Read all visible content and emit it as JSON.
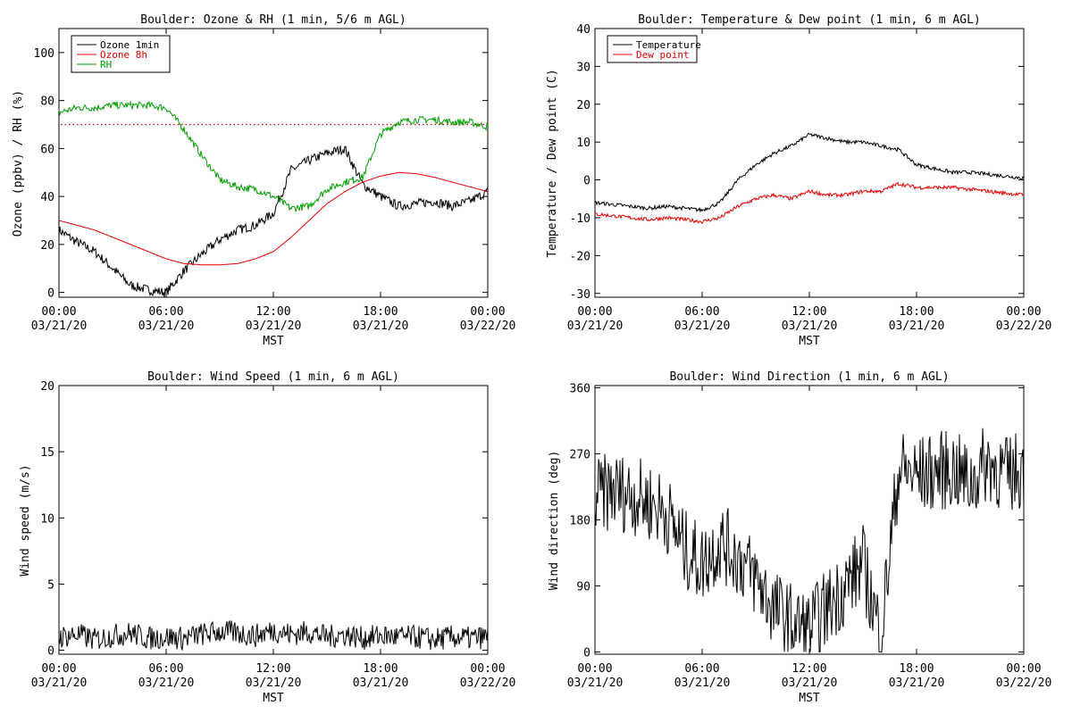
{
  "chart_data": [
    {
      "type": "line",
      "title": "Boulder: Ozone & RH (1 min, 5/6 m AGL)",
      "xlabel": "MST",
      "ylabel": "Ozone (ppbv) / RH (%)",
      "xlim": [
        "03/21/20 00:00",
        "03/22/20 00:00"
      ],
      "ylim": [
        -2,
        110
      ],
      "xticks": [
        {
          "time": "00:00",
          "date": "03/21/20"
        },
        {
          "time": "06:00",
          "date": "03/21/20"
        },
        {
          "time": "12:00",
          "date": "03/21/20"
        },
        {
          "time": "18:00",
          "date": "03/21/20"
        },
        {
          "time": "00:00",
          "date": "03/22/20"
        }
      ],
      "yticks": [
        0,
        20,
        40,
        60,
        80,
        100
      ],
      "legend_placement": "top-left",
      "reference_line": {
        "y": 70,
        "style": "dotted",
        "color": "#e60000"
      },
      "x_hours": [
        0,
        1,
        2,
        3,
        4,
        5,
        6,
        7,
        8,
        9,
        10,
        11,
        12,
        13,
        14,
        15,
        16,
        17,
        18,
        19,
        20,
        21,
        22,
        23,
        24
      ],
      "series": [
        {
          "name": "Ozone 1min",
          "color": "#000000",
          "values": [
            26,
            21,
            17,
            10,
            3,
            1,
            0,
            9,
            16,
            22,
            26,
            28,
            33,
            51,
            55,
            58,
            60,
            45,
            40,
            36,
            37,
            38,
            36,
            38,
            42
          ]
        },
        {
          "name": "Ozone 8h",
          "color": "#e60000",
          "values": [
            30,
            28,
            26,
            23,
            20,
            17,
            14,
            12,
            11.5,
            11.5,
            12,
            14,
            17,
            23,
            30,
            37,
            42,
            46,
            48.5,
            50,
            49.5,
            48,
            46,
            44,
            42
          ]
        },
        {
          "name": "RH",
          "color": "#00a000",
          "values": [
            75,
            77,
            77,
            78,
            78,
            78,
            77,
            68,
            57,
            47,
            44,
            43,
            40,
            35,
            36,
            43,
            46,
            48,
            66,
            71,
            72,
            72,
            71,
            71,
            69
          ]
        }
      ]
    },
    {
      "type": "line",
      "title": "Boulder: Temperature & Dew point (1 min, 6 m AGL)",
      "xlabel": "MST",
      "ylabel": "Temperature / Dew point (C)",
      "xlim": [
        "03/21/20 00:00",
        "03/22/20 00:00"
      ],
      "ylim": [
        -31,
        40
      ],
      "xticks": [
        {
          "time": "00:00",
          "date": "03/21/20"
        },
        {
          "time": "06:00",
          "date": "03/21/20"
        },
        {
          "time": "12:00",
          "date": "03/21/20"
        },
        {
          "time": "18:00",
          "date": "03/21/20"
        },
        {
          "time": "00:00",
          "date": "03/22/20"
        }
      ],
      "yticks": [
        -30,
        -20,
        -10,
        0,
        10,
        20,
        30,
        40
      ],
      "legend_placement": "top-left",
      "x_hours": [
        0,
        1,
        2,
        3,
        4,
        5,
        6,
        7,
        8,
        9,
        10,
        11,
        12,
        13,
        14,
        15,
        16,
        17,
        18,
        19,
        20,
        21,
        22,
        23,
        24
      ],
      "series": [
        {
          "name": "Temperature",
          "color": "#000000",
          "values": [
            -6,
            -6.5,
            -7,
            -7.5,
            -7,
            -7.5,
            -8,
            -6,
            0,
            4,
            7,
            9,
            12,
            11,
            10,
            10,
            9,
            8,
            4,
            3,
            2,
            2,
            1.5,
            1,
            0.5
          ]
        },
        {
          "name": "Dew point",
          "color": "#e60000",
          "values": [
            -9,
            -9.5,
            -10,
            -10.5,
            -10,
            -10.5,
            -11,
            -10,
            -7,
            -5,
            -4,
            -5,
            -3,
            -4,
            -4,
            -3,
            -3,
            -1,
            -2,
            -2,
            -2,
            -2.5,
            -3,
            -3.5,
            -4
          ]
        }
      ]
    },
    {
      "type": "line",
      "title": "Boulder: Wind Speed (1 min, 6 m AGL)",
      "xlabel": "MST",
      "ylabel": "Wind speed (m/s)",
      "xlim": [
        "03/21/20 00:00",
        "03/22/20 00:00"
      ],
      "ylim": [
        -0.3,
        20
      ],
      "xticks": [
        {
          "time": "00:00",
          "date": "03/21/20"
        },
        {
          "time": "06:00",
          "date": "03/21/20"
        },
        {
          "time": "12:00",
          "date": "03/21/20"
        },
        {
          "time": "18:00",
          "date": "03/21/20"
        },
        {
          "time": "00:00",
          "date": "03/22/20"
        }
      ],
      "yticks": [
        0,
        5,
        10,
        15,
        20
      ],
      "x_hours": [
        0,
        1,
        2,
        3,
        4,
        5,
        6,
        7,
        8,
        9,
        10,
        11,
        12,
        13,
        14,
        15,
        16,
        17,
        18,
        19,
        20,
        21,
        22,
        23,
        24
      ],
      "series": [
        {
          "color": "#000000",
          "values": [
            1.0,
            1.2,
            0.8,
            1.1,
            1.3,
            0.9,
            1.0,
            0.9,
            1.2,
            1.4,
            1.3,
            1.1,
            1.5,
            1.2,
            1.4,
            1.0,
            1.2,
            0.9,
            1.1,
            1.0,
            1.0,
            0.8,
            1.0,
            0.9,
            1.0
          ]
        }
      ]
    },
    {
      "type": "line",
      "title": "Boulder: Wind Direction (1 min, 6 m AGL)",
      "xlabel": "MST",
      "ylabel": "Wind direction (deg)",
      "xlim": [
        "03/21/20 00:00",
        "03/22/20 00:00"
      ],
      "ylim": [
        -3,
        363
      ],
      "xticks": [
        {
          "time": "00:00",
          "date": "03/21/20"
        },
        {
          "time": "06:00",
          "date": "03/21/20"
        },
        {
          "time": "12:00",
          "date": "03/21/20"
        },
        {
          "time": "18:00",
          "date": "03/21/20"
        },
        {
          "time": "00:00",
          "date": "03/22/20"
        }
      ],
      "yticks": [
        0,
        90,
        180,
        270,
        360
      ],
      "x_hours": [
        0,
        1,
        2,
        3,
        4,
        5,
        6,
        7,
        8,
        9,
        10,
        11,
        12,
        13,
        14,
        15,
        16,
        17,
        18,
        19,
        20,
        21,
        22,
        23,
        24
      ],
      "series": [
        {
          "color": "#000000",
          "values": [
            210,
            220,
            215,
            205,
            190,
            140,
            120,
            150,
            130,
            100,
            60,
            40,
            30,
            60,
            90,
            120,
            20,
            250,
            240,
            245,
            250,
            230,
            260,
            240,
            250
          ]
        }
      ]
    }
  ]
}
